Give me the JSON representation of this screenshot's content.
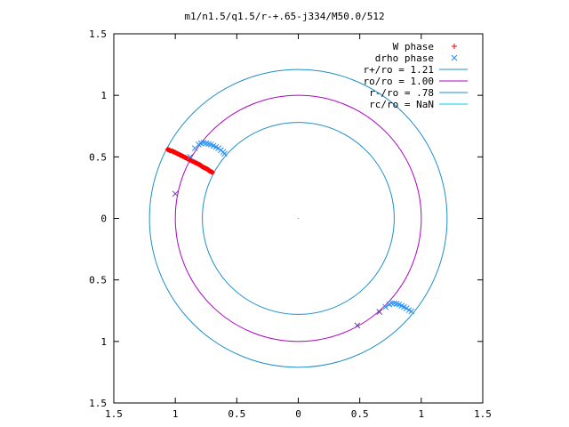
{
  "chart_data": {
    "type": "scatter",
    "title": "m1/n1.5/q1.5/r-+.65-j334/M50.0/512",
    "xlabel": "",
    "ylabel": "",
    "xlim": [
      -1.5,
      1.5
    ],
    "ylim": [
      -1.5,
      1.5
    ],
    "x_tick_values": [
      -1.5,
      -1,
      -0.5,
      0,
      0.5,
      1,
      1.5
    ],
    "y_tick_values": [
      -1.5,
      -1,
      -0.5,
      0,
      0.5,
      1,
      1.5
    ],
    "x_tick_labels": [
      "1.5",
      "1",
      "0.5",
      "0",
      "0.5",
      "1",
      "1.5"
    ],
    "y_tick_labels": [
      "1.5",
      "1",
      "0.5",
      "0",
      "0.5",
      "1",
      "1.5"
    ],
    "grid": false,
    "legend_position": "top-right",
    "colors": {
      "w_phase": "#ff0000",
      "drho_phase": "#1e90ff",
      "r_plus": "#1f8fc8",
      "ro": "#b000c8",
      "r_minus": "#1f8fc8",
      "rc": "#00d0e0",
      "axes": "#000000"
    },
    "series": [
      {
        "name": "W phase",
        "marker": "plus",
        "points": [
          [
            -1.06,
            0.56
          ],
          [
            -1.04,
            0.55
          ],
          [
            -1.02,
            0.545
          ],
          [
            -1.0,
            0.535
          ],
          [
            -0.98,
            0.525
          ],
          [
            -0.96,
            0.515
          ],
          [
            -0.94,
            0.505
          ],
          [
            -0.92,
            0.495
          ],
          [
            -0.9,
            0.485
          ],
          [
            -0.88,
            0.475
          ],
          [
            -0.86,
            0.465
          ],
          [
            -0.84,
            0.455
          ],
          [
            -0.82,
            0.445
          ],
          [
            -0.8,
            0.435
          ],
          [
            -0.78,
            0.42
          ],
          [
            -0.76,
            0.41
          ],
          [
            -0.74,
            0.4
          ],
          [
            -0.72,
            0.385
          ],
          [
            -0.7,
            0.375
          ]
        ]
      },
      {
        "name": "drho phase",
        "marker": "cross",
        "points": [
          [
            -1.0,
            0.2
          ],
          [
            -0.88,
            0.5
          ],
          [
            -0.84,
            0.57
          ],
          [
            -0.81,
            0.6
          ],
          [
            -0.79,
            0.61
          ],
          [
            -0.77,
            0.615
          ],
          [
            -0.75,
            0.61
          ],
          [
            -0.73,
            0.605
          ],
          [
            -0.71,
            0.6
          ],
          [
            -0.69,
            0.59
          ],
          [
            -0.67,
            0.58
          ],
          [
            -0.65,
            0.57
          ],
          [
            -0.63,
            0.555
          ],
          [
            -0.61,
            0.54
          ],
          [
            -0.6,
            0.525
          ],
          [
            0.48,
            -0.87
          ],
          [
            0.66,
            -0.76
          ],
          [
            0.71,
            -0.72
          ],
          [
            0.74,
            -0.7
          ],
          [
            0.76,
            -0.69
          ],
          [
            0.78,
            -0.69
          ],
          [
            0.8,
            -0.695
          ],
          [
            0.82,
            -0.7
          ],
          [
            0.84,
            -0.71
          ],
          [
            0.86,
            -0.72
          ],
          [
            0.88,
            -0.73
          ],
          [
            0.9,
            -0.745
          ],
          [
            0.92,
            -0.755
          ]
        ]
      },
      {
        "name": "r+/ro = 1.21",
        "type": "circle",
        "radius": 1.21
      },
      {
        "name": "ro/ro = 1.00",
        "type": "circle",
        "radius": 1.0
      },
      {
        "name": "r-/ro = .78",
        "type": "circle",
        "radius": 0.78
      },
      {
        "name": "rc/ro = NaN",
        "type": "circle",
        "radius": null
      }
    ]
  }
}
